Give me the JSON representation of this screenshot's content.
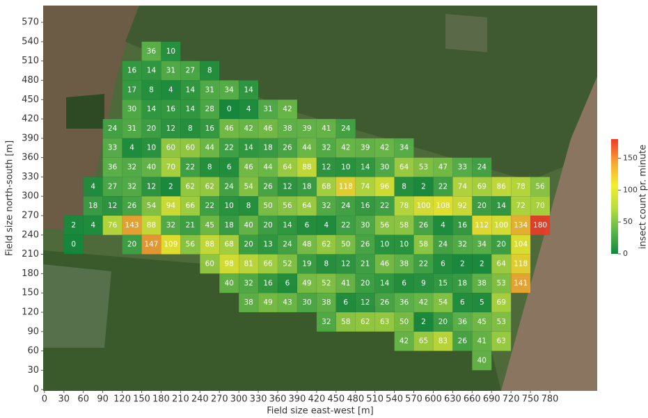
{
  "chart_data": {
    "type": "heatmap",
    "xlabel": "Field size east-west [m]",
    "ylabel": "Field size north-south [m]",
    "colorbar_label": "insect count pr. minute",
    "xlim": [
      -2,
      853
    ],
    "ylim": [
      -2,
      596
    ],
    "xticks": [
      0,
      30,
      60,
      90,
      120,
      150,
      180,
      210,
      240,
      270,
      300,
      330,
      360,
      390,
      420,
      450,
      480,
      510,
      540,
      570,
      600,
      630,
      660,
      690,
      720,
      750,
      780
    ],
    "yticks": [
      0,
      30,
      60,
      90,
      120,
      150,
      180,
      210,
      240,
      270,
      300,
      330,
      360,
      390,
      420,
      450,
      480,
      510,
      540,
      570
    ],
    "cell_size": 30,
    "clim": [
      0,
      180
    ],
    "cticks": [
      0,
      50,
      100,
      150
    ],
    "colormap": [
      "#0f8a3c",
      "#5cb84a",
      "#b8df3e",
      "#f2ee2e",
      "#f7a531",
      "#f03a26"
    ],
    "rows": [
      {
        "y": 510,
        "x": [
          150,
          180
        ],
        "values": [
          36,
          10
        ]
      },
      {
        "y": 480,
        "x": [
          120,
          150,
          180,
          210,
          240
        ],
        "values": [
          16,
          14,
          31,
          27,
          8
        ]
      },
      {
        "y": 450,
        "x": [
          120,
          150,
          180,
          210,
          240,
          270,
          300
        ],
        "values": [
          17,
          8,
          4,
          14,
          31,
          34,
          14
        ]
      },
      {
        "y": 420,
        "x": [
          120,
          150,
          180,
          210,
          240,
          270,
          300,
          330,
          360
        ],
        "values": [
          30,
          14,
          16,
          14,
          28,
          0,
          4,
          31,
          42
        ]
      },
      {
        "y": 390,
        "x": [
          90,
          120,
          150,
          180,
          210,
          240,
          270,
          300,
          330,
          360,
          390,
          420,
          450
        ],
        "values": [
          24,
          31,
          20,
          12,
          8,
          16,
          46,
          42,
          46,
          38,
          39,
          41,
          24
        ]
      },
      {
        "y": 360,
        "x": [
          90,
          120,
          150,
          180,
          210,
          240,
          270,
          300,
          330,
          360,
          390,
          420,
          450,
          480,
          510,
          540
        ],
        "values": [
          33,
          4,
          10,
          60,
          60,
          44,
          22,
          14,
          18,
          26,
          44,
          32,
          42,
          39,
          42,
          34
        ]
      },
      {
        "y": 330,
        "x": [
          90,
          120,
          150,
          180,
          210,
          240,
          270,
          300,
          330,
          360,
          390,
          420,
          450,
          480,
          510,
          540,
          570,
          600,
          630,
          660
        ],
        "values": [
          36,
          32,
          40,
          70,
          22,
          8,
          6,
          46,
          44,
          64,
          88,
          12,
          10,
          14,
          30,
          64,
          53,
          47,
          33,
          24
        ]
      },
      {
        "y": 300,
        "x": [
          60,
          90,
          120,
          150,
          180,
          210,
          240,
          270,
          300,
          330,
          360,
          390,
          420,
          450,
          480,
          510,
          540,
          570,
          600,
          630,
          660,
          690,
          720,
          750
        ],
        "values": [
          4,
          27,
          32,
          12,
          2,
          62,
          62,
          24,
          54,
          26,
          12,
          18,
          68,
          118,
          74,
          96,
          8,
          2,
          22,
          74,
          69,
          86,
          78,
          56
        ]
      },
      {
        "y": 270,
        "x": [
          60,
          90,
          120,
          150,
          180,
          210,
          240,
          270,
          300,
          330,
          360,
          390,
          420,
          450,
          480,
          510,
          540,
          570,
          600,
          630,
          660,
          690,
          720,
          750
        ],
        "values": [
          18,
          12,
          26,
          54,
          94,
          66,
          22,
          10,
          8,
          50,
          56,
          64,
          32,
          24,
          16,
          22,
          78,
          100,
          108,
          92,
          20,
          14,
          72,
          70
        ]
      },
      {
        "y": 240,
        "x": [
          30,
          60,
          90,
          120,
          150,
          180,
          210,
          240,
          270,
          300,
          330,
          360,
          390,
          420,
          450,
          480,
          510,
          540,
          570,
          600,
          630,
          660,
          690,
          720,
          750
        ],
        "values": [
          2,
          4,
          76,
          143,
          88,
          32,
          21,
          45,
          18,
          40,
          20,
          14,
          6,
          4,
          22,
          30,
          56,
          58,
          26,
          4,
          16,
          112,
          100,
          134,
          180
        ]
      },
      {
        "y": 210,
        "x": [
          30,
          120,
          150,
          180,
          210,
          240,
          270,
          300,
          330,
          360,
          390,
          420,
          450,
          480,
          510,
          540,
          570,
          600,
          630,
          660,
          690,
          720
        ],
        "values": [
          0,
          20,
          147,
          109,
          56,
          88,
          68,
          20,
          13,
          24,
          48,
          62,
          50,
          26,
          10,
          10,
          58,
          24,
          32,
          34,
          20,
          104
        ]
      },
      {
        "y": 180,
        "x": [
          240,
          270,
          300,
          330,
          360,
          390,
          420,
          450,
          480,
          510,
          540,
          570,
          600,
          630,
          660,
          690,
          720
        ],
        "values": [
          60,
          98,
          81,
          66,
          52,
          19,
          8,
          12,
          21,
          46,
          38,
          22,
          6,
          2,
          2,
          64,
          118
        ]
      },
      {
        "y": 150,
        "x": [
          270,
          300,
          330,
          360,
          390,
          420,
          450,
          480,
          510,
          540,
          570,
          600,
          630,
          660,
          690,
          720
        ],
        "values": [
          40,
          32,
          16,
          6,
          49,
          52,
          41,
          20,
          14,
          6,
          9,
          15,
          18,
          38,
          53,
          141
        ]
      },
      {
        "y": 120,
        "x": [
          300,
          330,
          360,
          390,
          420,
          450,
          480,
          510,
          540,
          570,
          600,
          630,
          660,
          690
        ],
        "values": [
          38,
          49,
          43,
          30,
          38,
          6,
          12,
          26,
          36,
          42,
          54,
          6,
          5,
          69
        ]
      },
      {
        "y": 90,
        "x": [
          420,
          450,
          480,
          510,
          540,
          570,
          600,
          630,
          660,
          690
        ],
        "values": [
          32,
          58,
          62,
          63,
          50,
          2,
          20,
          36,
          45,
          53
        ]
      },
      {
        "y": 60,
        "x": [
          540,
          570,
          600,
          630,
          660,
          690
        ],
        "values": [
          42,
          65,
          83,
          26,
          41,
          63
        ]
      },
      {
        "y": 30,
        "x": [
          660
        ],
        "values": [
          40
        ]
      }
    ]
  }
}
